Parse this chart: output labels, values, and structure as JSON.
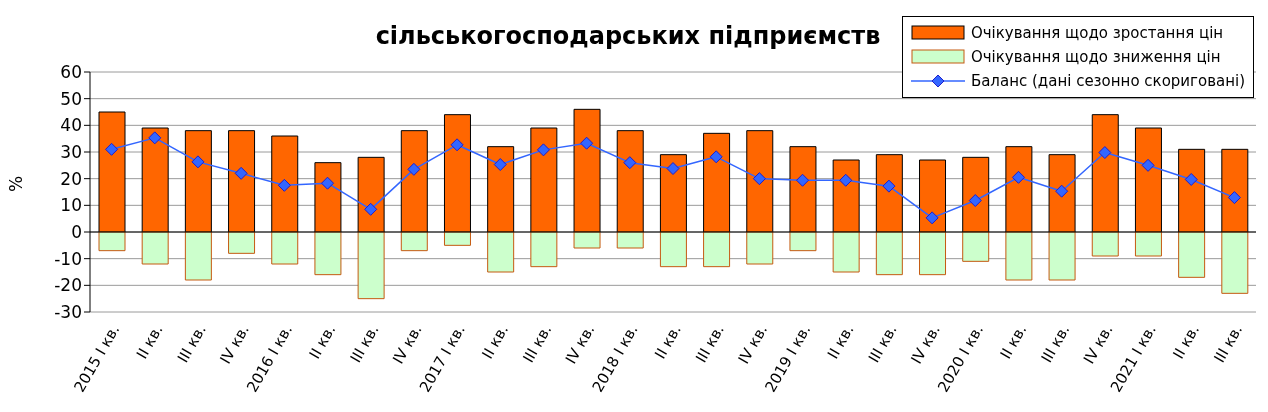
{
  "chart_data": {
    "type": "bar",
    "title": "сільськогосподарських підприємств",
    "ylabel": "%",
    "categories": [
      "2015 I кв.",
      "II кв.",
      "III кв.",
      "IV кв.",
      "2016 I кв.",
      "II кв.",
      "III кв.",
      "IV кв.",
      "2017 I кв.",
      "II кв.",
      "III кв.",
      "IV кв.",
      "2018 I кв.",
      "II кв.",
      "III кв.",
      "IV кв.",
      "2019 I кв.",
      "II кв.",
      "III кв.",
      "IV кв.",
      "2020 I кв.",
      "II кв.",
      "III кв.",
      "IV кв.",
      "2021 I кв.",
      "II кв.",
      "III кв."
    ],
    "series": [
      {
        "name": "Очікування щодо зростання цін",
        "color": "#ff6600",
        "values": [
          45,
          39,
          38,
          38,
          36,
          26,
          28,
          38,
          44,
          32,
          39,
          46,
          38,
          29,
          37,
          38,
          32,
          27,
          29,
          27,
          28,
          32,
          29,
          44,
          39,
          31,
          31
        ]
      },
      {
        "name": "Очікування щодо зниження цін",
        "color": "#ccffcc",
        "values": [
          -7,
          -12,
          -18,
          -8,
          -12,
          -16,
          -25,
          -7,
          -5,
          -15,
          -13,
          -6,
          -6,
          -13,
          -13,
          -12,
          -7,
          -15,
          -16,
          -16,
          -11,
          -18,
          -18,
          -9,
          -9,
          -17,
          -23
        ]
      },
      {
        "name": "Баланс (дані сезонно скориговані)",
        "type": "line",
        "color": "#3366ff",
        "marker": "diamond",
        "values": [
          31,
          35.3,
          26.3,
          22,
          17.5,
          18.3,
          8.5,
          23.5,
          32.7,
          25.3,
          30.8,
          33.3,
          26,
          23.8,
          28.2,
          20,
          19.4,
          19.4,
          17.2,
          5.3,
          11.8,
          20.5,
          15.3,
          29.8,
          25,
          19.7,
          12.9
        ]
      }
    ],
    "stacked": true,
    "ylim": [
      -30,
      60
    ],
    "yticks": [
      -30,
      -20,
      -10,
      0,
      10,
      20,
      30,
      40,
      50,
      60
    ],
    "grid": "y",
    "legend": "top right"
  }
}
